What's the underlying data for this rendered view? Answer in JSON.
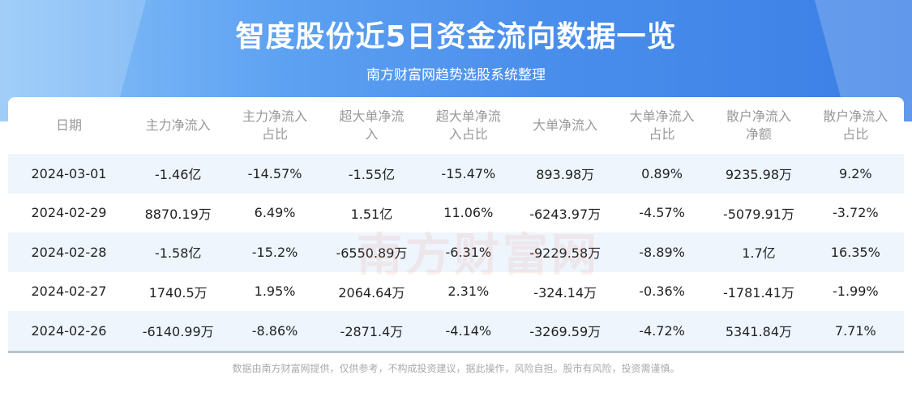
{
  "header": {
    "title": "智度股份近5日资金流向数据一览",
    "subtitle": "南方财富网趋势选股系统整理"
  },
  "table": {
    "columns": [
      [
        "日期",
        ""
      ],
      [
        "主力净流入",
        ""
      ],
      [
        "主力净流入",
        "占比"
      ],
      [
        "超大单净流",
        "入"
      ],
      [
        "超大单净流",
        "入占比"
      ],
      [
        "大单净流入",
        ""
      ],
      [
        "大单净流入",
        "占比"
      ],
      [
        "散户净流入",
        "净额"
      ],
      [
        "散户净流入",
        "占比"
      ]
    ],
    "rows": [
      [
        "2024-03-01",
        "-1.46亿",
        "-14.57%",
        "-1.55亿",
        "-15.47%",
        "893.98万",
        "0.89%",
        "9235.98万",
        "9.2%"
      ],
      [
        "2024-02-29",
        "8870.19万",
        "6.49%",
        "1.51亿",
        "11.06%",
        "-6243.97万",
        "-4.57%",
        "-5079.91万",
        "-3.72%"
      ],
      [
        "2024-02-28",
        "-1.58亿",
        "-15.2%",
        "-6550.89万",
        "-6.31%",
        "-9229.58万",
        "-8.89%",
        "1.7亿",
        "16.35%"
      ],
      [
        "2024-02-27",
        "1740.5万",
        "1.95%",
        "2064.64万",
        "2.31%",
        "-324.14万",
        "-0.36%",
        "-1781.41万",
        "-1.99%"
      ],
      [
        "2024-02-26",
        "-6140.99万",
        "-8.86%",
        "-2871.4万",
        "-4.14%",
        "-3269.59万",
        "-4.72%",
        "5341.84万",
        "7.71%"
      ]
    ]
  },
  "watermark": "南方财富网",
  "footer": "数据由南方财富网提供，仅供参考，不构成投资建议，据此操作，风险自担。股市有风险，投资需谨慎。"
}
